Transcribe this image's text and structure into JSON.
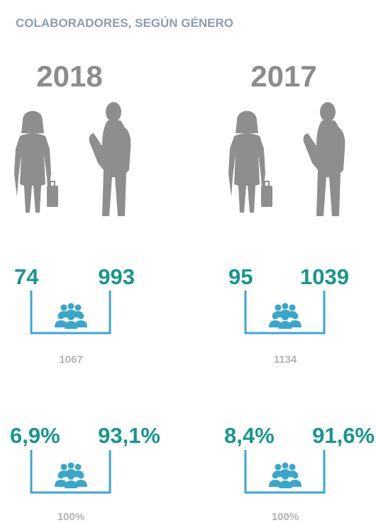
{
  "title": "COLABORADORES, SEGÚN GÉNERO",
  "years": [
    {
      "year": "2018",
      "women": "74",
      "men": "993",
      "total": "1067",
      "women_pct": "6,9%",
      "men_pct": "93,1%",
      "total_pct": "100%"
    },
    {
      "year": "2017",
      "women": "95",
      "men": "1039",
      "total": "1134",
      "women_pct": "8,4%",
      "men_pct": "91,6%",
      "total_pct": "100%"
    }
  ]
}
